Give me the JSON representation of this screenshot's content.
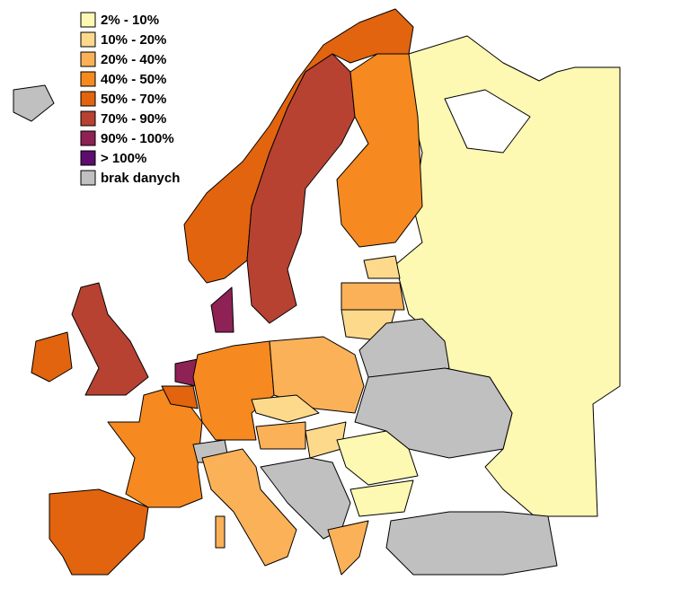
{
  "legend": [
    {
      "label": "2% - 10%",
      "color": "#fdf8b2"
    },
    {
      "label": "10% - 20%",
      "color": "#fdd98c"
    },
    {
      "label": "20% - 40%",
      "color": "#fbb158"
    },
    {
      "label": "40% - 50%",
      "color": "#f6891f"
    },
    {
      "label": "50% - 70%",
      "color": "#e2640e"
    },
    {
      "label": "70% - 90%",
      "color": "#b74232"
    },
    {
      "label": "90% - 100%",
      "color": "#8e2254"
    },
    {
      "label": "> 100%",
      "color": "#5c0d6e"
    },
    {
      "label": "brak danych",
      "color": "#c0c0c0"
    }
  ]
}
